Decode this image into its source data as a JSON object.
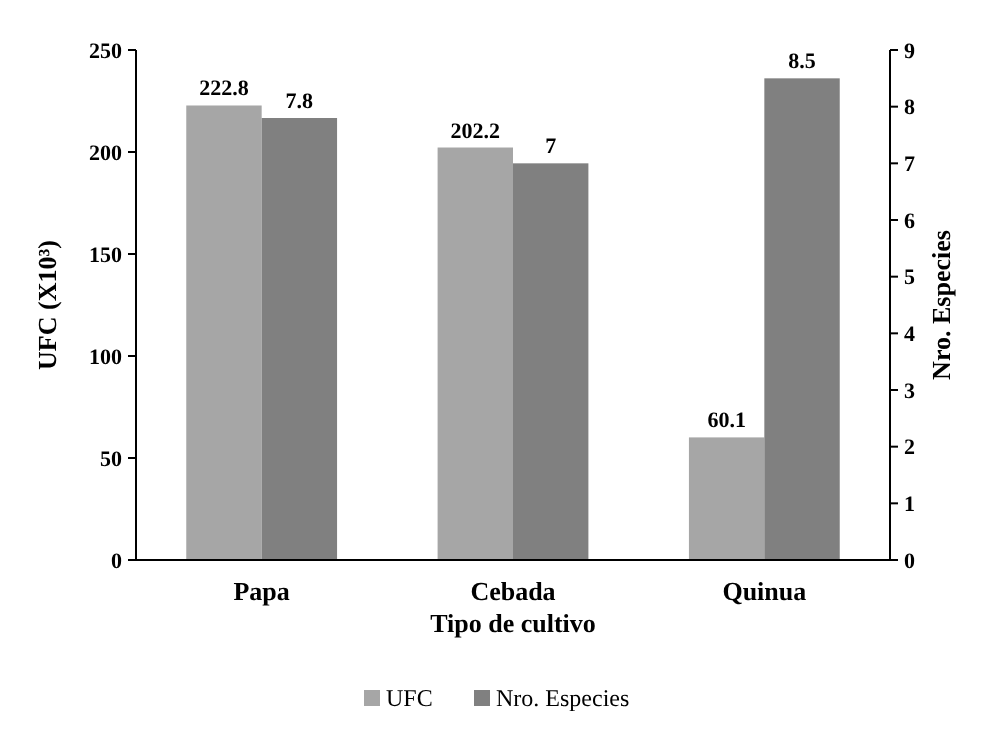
{
  "chart_data": {
    "type": "bar",
    "categories": [
      "Papa",
      "Cebada",
      "Quinua"
    ],
    "xlabel": "Tipo de cultivo",
    "ylabel": "UFC (X10³)",
    "y2label": "Nro. Especies",
    "series": [
      {
        "name": "UFC",
        "color": "#a6a6a6",
        "values": [
          222.8,
          202.2,
          60.1
        ]
      },
      {
        "name": "Nro. Especies",
        "color": "#808080",
        "values": [
          7.8,
          7,
          8.5
        ],
        "axis": "y2"
      }
    ],
    "ylim": [
      0,
      250
    ],
    "yticks": [
      0,
      50,
      100,
      150,
      200,
      250
    ],
    "y2lim": [
      0,
      9
    ],
    "y2ticks": [
      0,
      1,
      2,
      3,
      4,
      5,
      6,
      7,
      8,
      9
    ],
    "data_labels": true,
    "legend": "bottom",
    "grid": false
  }
}
